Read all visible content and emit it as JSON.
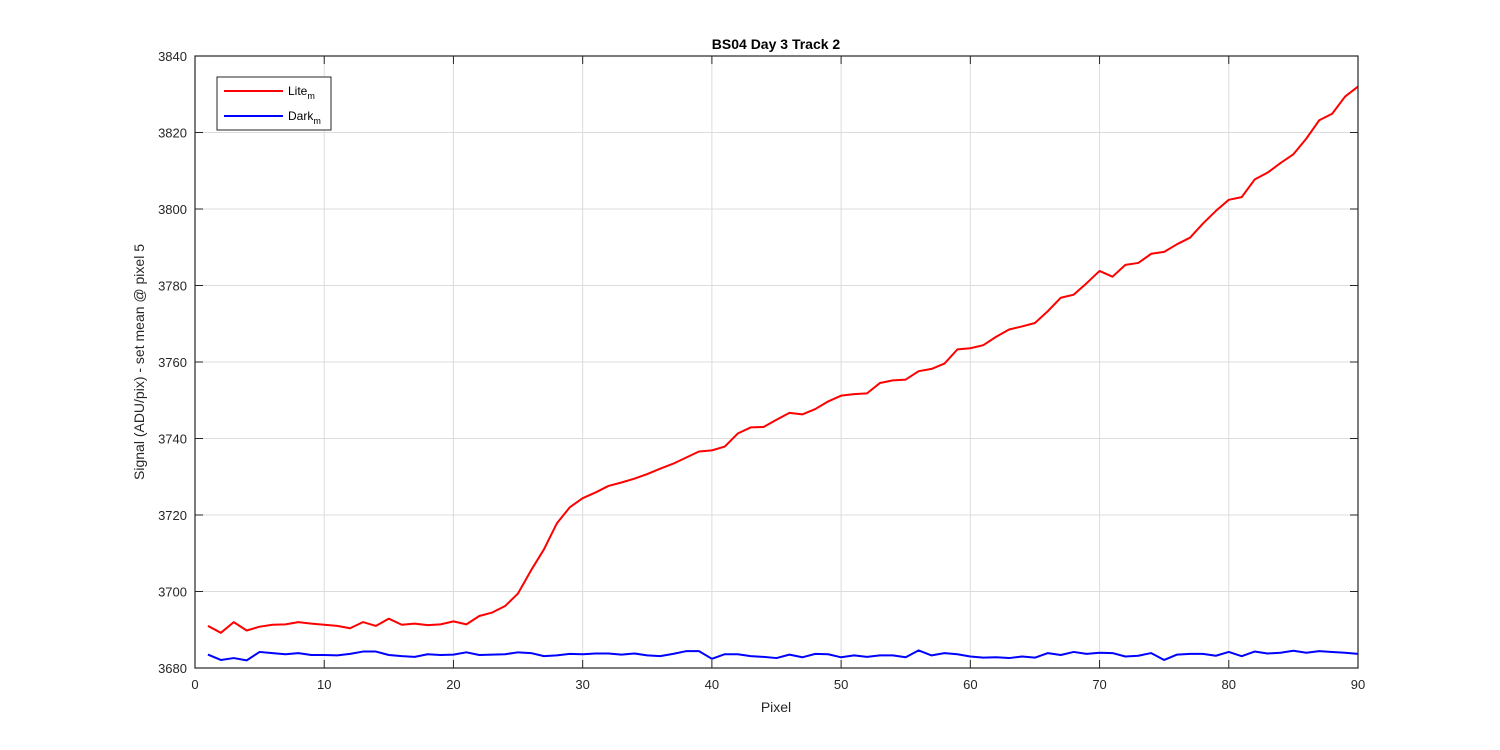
{
  "chart_data": {
    "type": "line",
    "title": "BS04 Day 3 Track 2",
    "xlabel": "Pixel",
    "ylabel": "Signal (ADU/pix) - set mean @ pixel 5",
    "xlim": [
      0,
      90
    ],
    "ylim": [
      3680,
      3840
    ],
    "xticks": [
      0,
      10,
      20,
      30,
      40,
      50,
      60,
      70,
      80,
      90
    ],
    "yticks": [
      3680,
      3700,
      3720,
      3740,
      3760,
      3780,
      3800,
      3820,
      3840
    ],
    "grid": true,
    "legend_position": "top-left",
    "x": [
      1,
      2,
      3,
      4,
      5,
      6,
      7,
      8,
      9,
      10,
      11,
      12,
      13,
      14,
      15,
      16,
      17,
      18,
      19,
      20,
      21,
      22,
      23,
      24,
      25,
      26,
      27,
      28,
      29,
      30,
      31,
      32,
      33,
      34,
      35,
      36,
      37,
      38,
      39,
      40,
      41,
      42,
      43,
      44,
      45,
      46,
      47,
      48,
      49,
      50,
      51,
      52,
      53,
      54,
      55,
      56,
      57,
      58,
      59,
      60,
      61,
      62,
      63,
      64,
      65,
      66,
      67,
      68,
      69,
      70,
      71,
      72,
      73,
      74,
      75,
      76,
      77,
      78,
      79,
      80,
      81,
      82,
      83,
      84,
      85,
      86,
      87,
      88,
      89,
      90
    ],
    "series": [
      {
        "name": "Lite",
        "name_subscript": "m",
        "color": "#ff0000",
        "values": [
          3691.0,
          3689.2,
          3692.0,
          3689.8,
          3690.8,
          3691.3,
          3691.4,
          3692.0,
          3691.6,
          3691.3,
          3691.0,
          3690.4,
          3692.0,
          3691.0,
          3692.9,
          3691.3,
          3691.6,
          3691.2,
          3691.4,
          3692.2,
          3691.4,
          3693.6,
          3694.5,
          3696.2,
          3699.5,
          3705.5,
          3711.0,
          3717.8,
          3722.0,
          3724.4,
          3725.9,
          3727.6,
          3728.5,
          3729.5,
          3730.7,
          3732.1,
          3733.4,
          3735.0,
          3736.6,
          3736.9,
          3737.9,
          3741.3,
          3742.9,
          3743.0,
          3744.9,
          3746.7,
          3746.3,
          3747.7,
          3749.7,
          3751.2,
          3751.6,
          3751.8,
          3754.5,
          3755.2,
          3755.4,
          3757.6,
          3758.2,
          3759.6,
          3763.3,
          3763.6,
          3764.4,
          3766.6,
          3768.5,
          3769.3,
          3770.2,
          3773.3,
          3776.8,
          3777.6,
          3780.6,
          3783.8,
          3782.3,
          3785.4,
          3785.9,
          3788.3,
          3788.8,
          3790.8,
          3792.5,
          3796.2,
          3799.5,
          3802.4,
          3803.1,
          3807.7,
          3809.5,
          3812.0,
          3814.3,
          3818.4,
          3823.2,
          3824.9,
          3829.4,
          3832.0
        ]
      },
      {
        "name": "Dark",
        "name_subscript": "m",
        "color": "#0000ff",
        "values": [
          3683.5,
          3682.1,
          3682.6,
          3682.0,
          3684.2,
          3683.9,
          3683.6,
          3683.9,
          3683.4,
          3683.4,
          3683.3,
          3683.7,
          3684.3,
          3684.3,
          3683.4,
          3683.1,
          3682.9,
          3683.6,
          3683.4,
          3683.5,
          3684.1,
          3683.4,
          3683.5,
          3683.6,
          3684.1,
          3683.9,
          3683.1,
          3683.3,
          3683.7,
          3683.6,
          3683.8,
          3683.8,
          3683.5,
          3683.8,
          3683.3,
          3683.1,
          3683.7,
          3684.4,
          3684.4,
          3682.4,
          3683.6,
          3683.6,
          3683.1,
          3682.9,
          3682.6,
          3683.5,
          3682.8,
          3683.7,
          3683.6,
          3682.8,
          3683.3,
          3682.9,
          3683.3,
          3683.3,
          3682.8,
          3684.6,
          3683.3,
          3683.9,
          3683.6,
          3683.0,
          3682.7,
          3682.8,
          3682.6,
          3683.0,
          3682.7,
          3683.9,
          3683.4,
          3684.2,
          3683.7,
          3684.0,
          3683.9,
          3683.0,
          3683.2,
          3683.9,
          3682.1,
          3683.5,
          3683.7,
          3683.7,
          3683.2,
          3684.2,
          3683.1,
          3684.3,
          3683.8,
          3684.0,
          3684.5,
          3684.0,
          3684.4,
          3684.2,
          3684.0,
          3683.7
        ]
      }
    ]
  }
}
